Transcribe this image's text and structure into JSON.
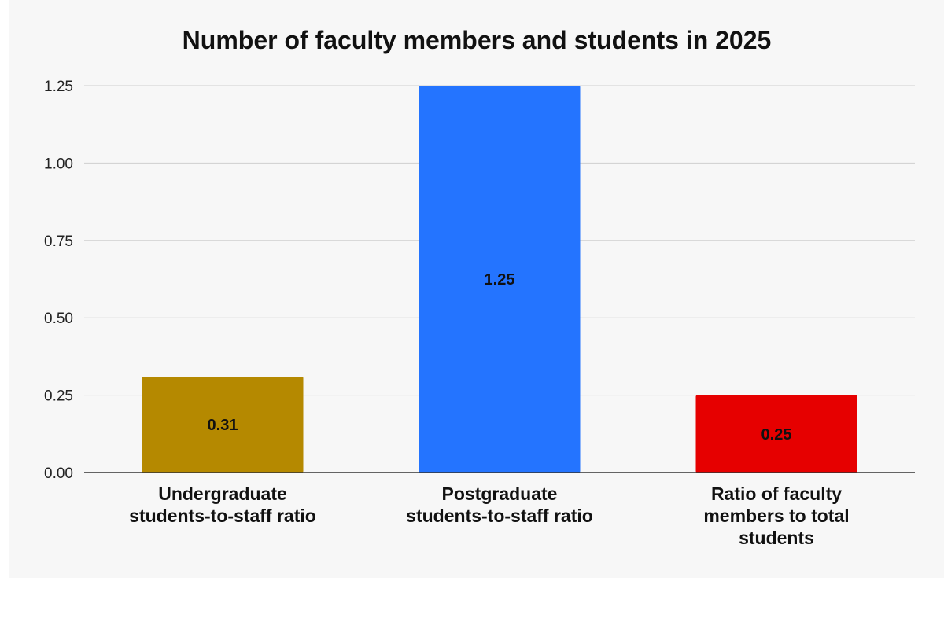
{
  "chart_data": {
    "type": "bar",
    "title": "Number of faculty members and students in 2025",
    "xlabel": "",
    "ylabel": "",
    "categories": [
      [
        "Undergraduate",
        "students-to-staff ratio"
      ],
      [
        "Postgraduate",
        "students-to-staff ratio"
      ],
      [
        "Ratio of faculty",
        "members to total",
        "students"
      ]
    ],
    "values": [
      0.31,
      1.25,
      0.25
    ],
    "data_labels": [
      "0.31",
      "1.25",
      "0.25"
    ],
    "bar_colors": [
      "#b58900",
      "#2474ff",
      "#e60000"
    ],
    "ylim": [
      0,
      1.25
    ],
    "yticks": [
      0,
      0.25,
      0.5,
      0.75,
      1.0,
      1.25
    ],
    "ytick_labels": [
      "0.00",
      "0.25",
      "0.50",
      "0.75",
      "1.00",
      "1.25"
    ],
    "grid": true,
    "legend": "none"
  }
}
